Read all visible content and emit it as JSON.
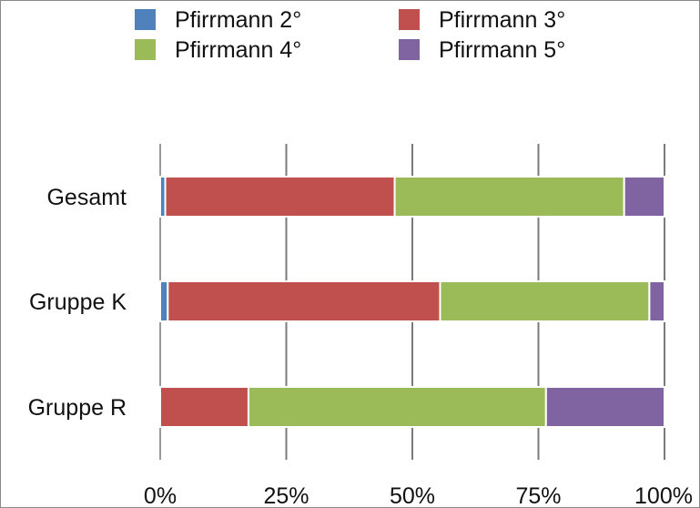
{
  "chart_data": {
    "type": "bar",
    "orientation": "horizontal",
    "stacked": "percent",
    "categories": [
      "Gesamt",
      "Gruppe K",
      "Gruppe R"
    ],
    "series": [
      {
        "name": "Pfirrmann 2°",
        "color": "#4f81bd",
        "values": [
          1,
          1.5,
          0
        ]
      },
      {
        "name": "Pfirrmann 3°",
        "color": "#c0504d",
        "values": [
          45.5,
          54,
          17.5
        ]
      },
      {
        "name": "Pfirrmann 4°",
        "color": "#9bbb59",
        "values": [
          45.5,
          41.5,
          59
        ]
      },
      {
        "name": "Pfirrmann 5°",
        "color": "#8064a2",
        "values": [
          8,
          3,
          23.5
        ]
      }
    ],
    "x_ticks": [
      "0%",
      "25%",
      "50%",
      "75%",
      "100%"
    ],
    "xlim": [
      0,
      100
    ],
    "title": "",
    "xlabel": "",
    "ylabel": "",
    "grid": "vertical",
    "legend_position": "top"
  }
}
